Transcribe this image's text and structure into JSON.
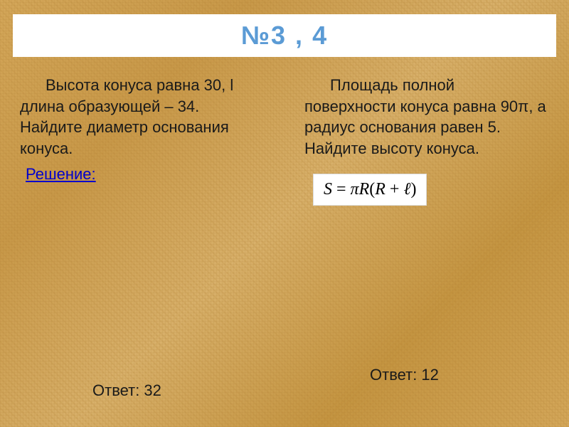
{
  "title": "№3 , 4",
  "left_column": {
    "problem": "Высота конуса равна 30, l длина образующей – 34. Найдите диаметр основания конуса.",
    "solution_label": "Решение:",
    "answer": "Ответ: 32"
  },
  "right_column": {
    "problem": "Площадь полной поверхности конуса равна 90π, а радиус основания равен 5. Найдите высоту конуса.",
    "formula_parts": {
      "lhs": "S",
      "eq": " = ",
      "pi": "π",
      "R1": "R",
      "lparen": "(",
      "R2": "R",
      "plus": " + ",
      "ell": "ℓ",
      "rparen": ")"
    },
    "answer": "Ответ: 12"
  },
  "colors": {
    "title_color": "#5b9bd5",
    "title_bg": "#ffffff",
    "text_color": "#1a1a1a",
    "link_color": "#0000cc",
    "formula_bg": "#ffffff"
  },
  "typography": {
    "title_fontsize": 36,
    "body_fontsize": 22,
    "formula_fontsize": 24
  }
}
